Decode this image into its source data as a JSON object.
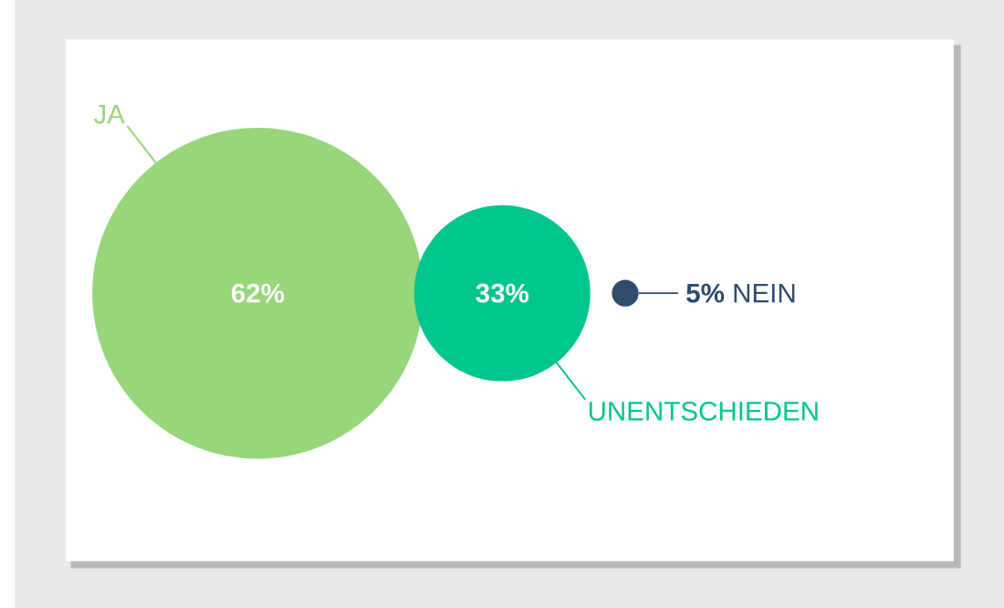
{
  "chart_data": {
    "type": "other",
    "categories": [
      "JA",
      "UNENTSCHIEDEN",
      "NEIN"
    ],
    "values": [
      62,
      33,
      5
    ],
    "value_labels": [
      "62%",
      "33%",
      "5%"
    ],
    "colors": [
      "#97d67a",
      "#00c58d",
      "#2f4b6e"
    ]
  }
}
